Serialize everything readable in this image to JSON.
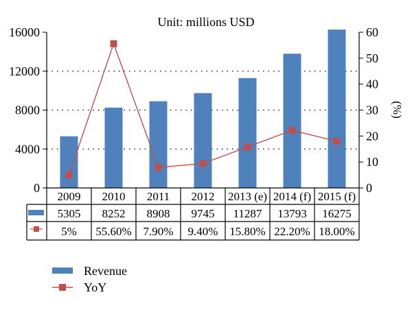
{
  "chart_data": {
    "type": "bar",
    "title": "Unit: millions USD",
    "categories": [
      "2009",
      "2010",
      "2011",
      "2012",
      "2013 (e)",
      "2014 (f)",
      "2015 (f)"
    ],
    "series": [
      {
        "name": "Revenue",
        "type": "bar",
        "axis": "left",
        "color": "#4f81bd",
        "values": [
          5305,
          8252,
          8908,
          9745,
          11287,
          13793,
          16275
        ]
      },
      {
        "name": "YoY",
        "type": "line",
        "axis": "right",
        "color": "#c0504d",
        "values": [
          5,
          55.6,
          7.9,
          9.4,
          15.8,
          22.2,
          18.0
        ],
        "labels": [
          "5%",
          "55.60%",
          "7.90%",
          "9.40%",
          "15.80%",
          "22.20%",
          "18.00%"
        ]
      }
    ],
    "y_left": {
      "min": 0,
      "max": 16000,
      "ticks": [
        0,
        4000,
        8000,
        12000,
        16000
      ]
    },
    "y_right": {
      "min": 0,
      "max": 60,
      "ticks": [
        0,
        10,
        20,
        30,
        40,
        50,
        60
      ],
      "label": "(%)"
    },
    "grid": "dotted horizontal",
    "legend_position": "bottom-left",
    "data_table": true
  }
}
